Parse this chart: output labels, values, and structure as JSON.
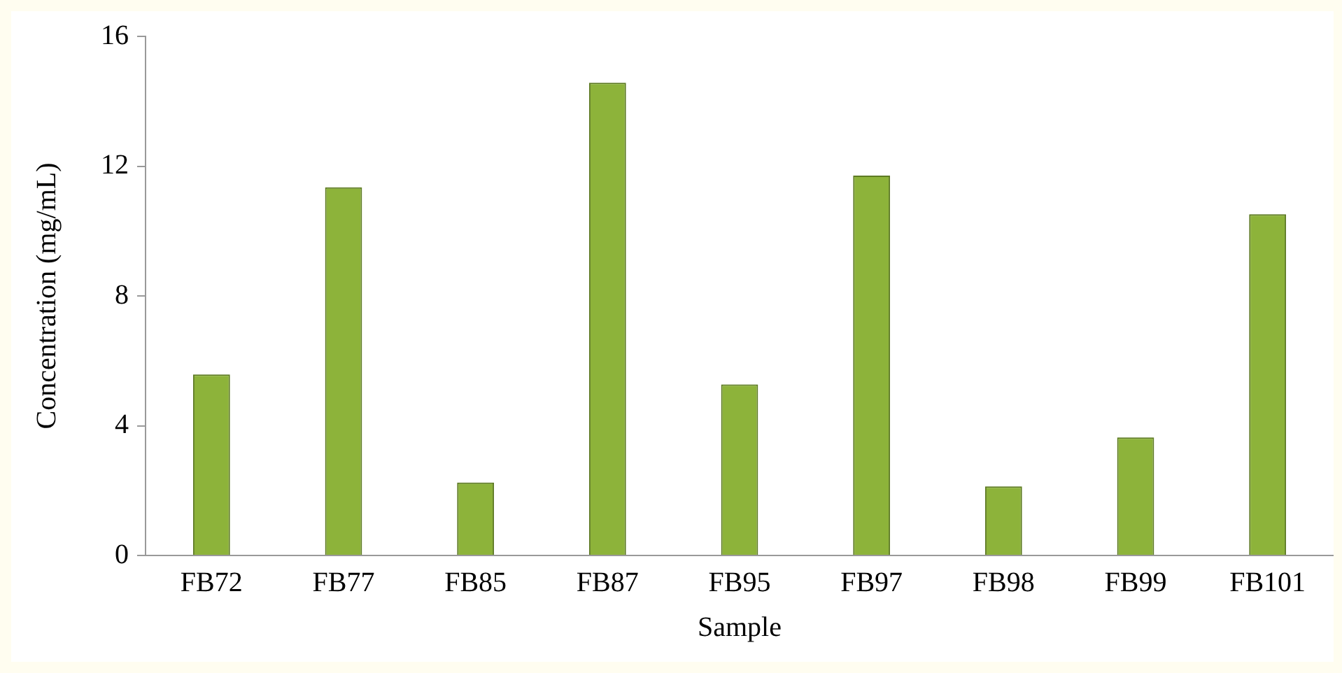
{
  "chart_data": {
    "type": "bar",
    "xlabel": "Sample",
    "ylabel": "Concentration (mg/mL)",
    "categories": [
      "FB72",
      "FB77",
      "FB85",
      "FB87",
      "FB95",
      "FB97",
      "FB98",
      "FB99",
      "FB101"
    ],
    "values": [
      5.58,
      11.35,
      2.25,
      14.57,
      5.27,
      11.71,
      2.13,
      3.64,
      10.52
    ],
    "color": "#8db33a",
    "ylim": [
      0,
      16
    ],
    "yticks": [
      0,
      4,
      8,
      12,
      16
    ],
    "grid": false,
    "legend": false
  }
}
